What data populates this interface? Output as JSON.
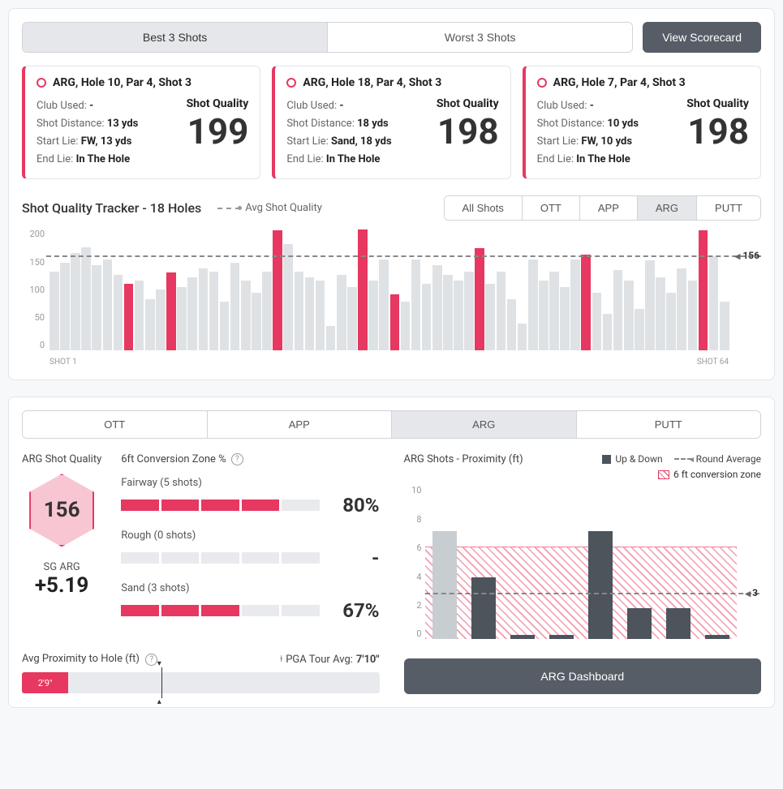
{
  "colors": {
    "accent": "#e63860",
    "barGrey": "#dfe2e5",
    "darkBar": "#4d545b"
  },
  "topTabs": {
    "best": "Best 3 Shots",
    "worst": "Worst 3 Shots",
    "active": "best"
  },
  "viewScorecard": "View Scorecard",
  "shots": [
    {
      "title": "ARG, Hole 10, Par 4, Shot 3",
      "clubLabel": "Club Used:",
      "club": "-",
      "distLabel": "Shot Distance:",
      "dist": "13 yds",
      "startLabel": "Start Lie:",
      "start": "FW, 13 yds",
      "endLabel": "End Lie:",
      "end": "In The Hole",
      "sqLabel": "Shot Quality",
      "sq": "199"
    },
    {
      "title": "ARG, Hole 18, Par 4, Shot 3",
      "clubLabel": "Club Used:",
      "club": "-",
      "distLabel": "Shot Distance:",
      "dist": "18 yds",
      "startLabel": "Start Lie:",
      "start": "Sand, 18 yds",
      "endLabel": "End Lie:",
      "end": "In The Hole",
      "sqLabel": "Shot Quality",
      "sq": "198"
    },
    {
      "title": "ARG, Hole 7, Par 4, Shot 3",
      "clubLabel": "Club Used:",
      "club": "-",
      "distLabel": "Shot Distance:",
      "dist": "10 yds",
      "startLabel": "Start Lie:",
      "start": "FW, 10 yds",
      "endLabel": "End Lie:",
      "end": "In The Hole",
      "sqLabel": "Shot Quality",
      "sq": "198"
    }
  ],
  "tracker": {
    "title": "Shot Quality Tracker - 18 Holes",
    "avgLegend": "Avg Shot Quality",
    "filters": [
      "All Shots",
      "OTT",
      "APP",
      "ARG",
      "PUTT"
    ],
    "activeFilter": "ARG",
    "ymax": 200,
    "yticks": [
      "200",
      "150",
      "100",
      "50",
      "0"
    ],
    "avg": 156,
    "avgLabel": "156",
    "xstart": "SHOT 1",
    "xend": "SHOT 64",
    "bars": [
      {
        "v": 130,
        "hl": false
      },
      {
        "v": 145,
        "hl": false
      },
      {
        "v": 160,
        "hl": false
      },
      {
        "v": 170,
        "hl": false
      },
      {
        "v": 140,
        "hl": false
      },
      {
        "v": 150,
        "hl": false
      },
      {
        "v": 125,
        "hl": false
      },
      {
        "v": 110,
        "hl": true
      },
      {
        "v": 115,
        "hl": false
      },
      {
        "v": 85,
        "hl": false
      },
      {
        "v": 100,
        "hl": false
      },
      {
        "v": 128,
        "hl": true
      },
      {
        "v": 105,
        "hl": false
      },
      {
        "v": 120,
        "hl": false
      },
      {
        "v": 135,
        "hl": false
      },
      {
        "v": 130,
        "hl": false
      },
      {
        "v": 80,
        "hl": false
      },
      {
        "v": 145,
        "hl": false
      },
      {
        "v": 115,
        "hl": false
      },
      {
        "v": 95,
        "hl": false
      },
      {
        "v": 130,
        "hl": false
      },
      {
        "v": 198,
        "hl": true
      },
      {
        "v": 175,
        "hl": false
      },
      {
        "v": 130,
        "hl": false
      },
      {
        "v": 120,
        "hl": false
      },
      {
        "v": 115,
        "hl": false
      },
      {
        "v": 40,
        "hl": false
      },
      {
        "v": 125,
        "hl": false
      },
      {
        "v": 105,
        "hl": false
      },
      {
        "v": 199,
        "hl": true
      },
      {
        "v": 115,
        "hl": false
      },
      {
        "v": 150,
        "hl": false
      },
      {
        "v": 92,
        "hl": true
      },
      {
        "v": 80,
        "hl": false
      },
      {
        "v": 150,
        "hl": false
      },
      {
        "v": 110,
        "hl": false
      },
      {
        "v": 140,
        "hl": false
      },
      {
        "v": 125,
        "hl": false
      },
      {
        "v": 115,
        "hl": false
      },
      {
        "v": 130,
        "hl": false
      },
      {
        "v": 168,
        "hl": true
      },
      {
        "v": 110,
        "hl": false
      },
      {
        "v": 130,
        "hl": false
      },
      {
        "v": 85,
        "hl": false
      },
      {
        "v": 45,
        "hl": false
      },
      {
        "v": 150,
        "hl": false
      },
      {
        "v": 115,
        "hl": false
      },
      {
        "v": 130,
        "hl": false
      },
      {
        "v": 105,
        "hl": false
      },
      {
        "v": 150,
        "hl": false
      },
      {
        "v": 158,
        "hl": true
      },
      {
        "v": 95,
        "hl": false
      },
      {
        "v": 60,
        "hl": false
      },
      {
        "v": 132,
        "hl": false
      },
      {
        "v": 115,
        "hl": false
      },
      {
        "v": 68,
        "hl": false
      },
      {
        "v": 148,
        "hl": false
      },
      {
        "v": 120,
        "hl": false
      },
      {
        "v": 95,
        "hl": false
      },
      {
        "v": 135,
        "hl": false
      },
      {
        "v": 115,
        "hl": false
      },
      {
        "v": 198,
        "hl": true
      },
      {
        "v": 155,
        "hl": false
      },
      {
        "v": 80,
        "hl": false
      }
    ]
  },
  "lowerTabs": {
    "items": [
      "OTT",
      "APP",
      "ARG",
      "PUTT"
    ],
    "active": "ARG"
  },
  "argQuality": {
    "title": "ARG Shot Quality",
    "hex": "156",
    "sgLabel": "SG ARG",
    "sgVal": "+5.19"
  },
  "conversion": {
    "title": "6ft Conversion Zone %",
    "items": [
      {
        "label": "Fairway (5 shots)",
        "filled": 4,
        "total": 5,
        "pct": "80%"
      },
      {
        "label": "Rough (0 shots)",
        "filled": 0,
        "total": 5,
        "pct": "-"
      },
      {
        "label": "Sand (3 shots)",
        "filled": 3,
        "total": 5,
        "pct": "67%",
        "partialWidth": 65
      }
    ]
  },
  "proximity": {
    "label": "Avg Proximity to Hole (ft)",
    "pgaLabel": "PGA Tour Avg:",
    "pgaVal": "7'10\"",
    "fillPct": 13,
    "fillText": "2'9\"",
    "tickPct": 39
  },
  "proxChart": {
    "title": "ARG Shots - Proximity (ft)",
    "legUpDown": "Up & Down",
    "legRoundAvg": "Round Average",
    "legZone": "6 ft conversion zone",
    "ymax": 10,
    "yticks": [
      "10",
      "8",
      "6",
      "4",
      "2",
      "0"
    ],
    "zoneTop": 6,
    "avg": 3,
    "avgLabel": "3",
    "bars": [
      {
        "v": 7,
        "up": false
      },
      {
        "v": 4,
        "up": true
      },
      {
        "v": 0.3,
        "up": true
      },
      {
        "v": 0.3,
        "up": true
      },
      {
        "v": 7,
        "up": true
      },
      {
        "v": 2,
        "up": true
      },
      {
        "v": 2,
        "up": true
      },
      {
        "v": 0.3,
        "up": true
      }
    ]
  },
  "dashboardBtn": "ARG Dashboard"
}
